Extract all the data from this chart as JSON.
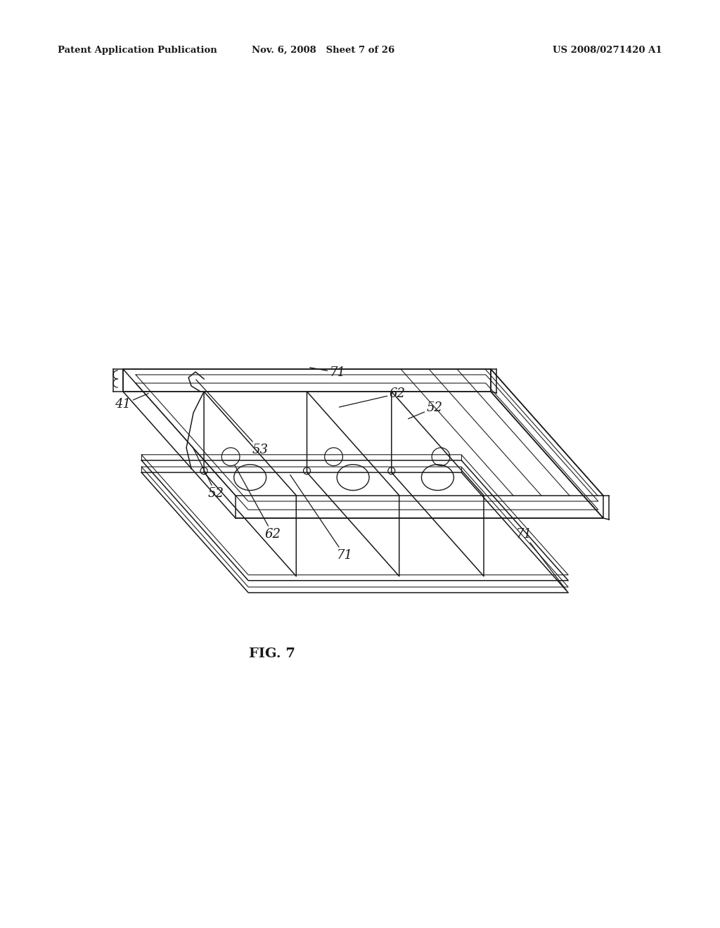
{
  "background_color": "#ffffff",
  "header_left": "Patent Application Publication",
  "header_middle": "Nov. 6, 2008   Sheet 7 of 26",
  "header_right": "US 2008/0271420 A1",
  "figure_label": "FIG. 7",
  "line_color": "#1a1a1a",
  "lw": 1.1
}
